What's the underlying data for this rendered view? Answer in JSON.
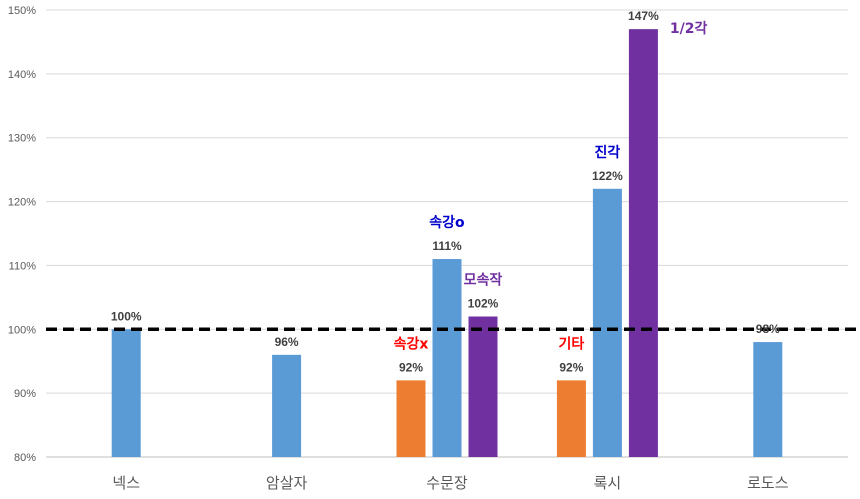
{
  "chart_data": {
    "type": "bar",
    "categories": [
      "넥스",
      "암살자",
      "수문장",
      "록시",
      "로도스"
    ],
    "ylim": [
      0.8,
      1.5
    ],
    "yticks": [
      "80%",
      "90%",
      "100%",
      "110%",
      "120%",
      "130%",
      "140%",
      "150%"
    ],
    "grid": true,
    "reference_line": {
      "value": 1.0,
      "style": "dashed",
      "color": "#000000"
    },
    "bars": [
      {
        "category": "넥스",
        "value": 1.0,
        "label": "100%",
        "color": "#5b9bd5",
        "annotation": ""
      },
      {
        "category": "암살자",
        "value": 0.96,
        "label": "96%",
        "color": "#5b9bd5",
        "annotation": ""
      },
      {
        "category": "수문장",
        "value": 0.92,
        "label": "92%",
        "color": "#ed7d31",
        "annotation": "속강x",
        "annotation_color": "#ff0000"
      },
      {
        "category": "수문장",
        "value": 1.11,
        "label": "111%",
        "color": "#5b9bd5",
        "annotation": "속강o",
        "annotation_color": "#0000cc"
      },
      {
        "category": "수문장",
        "value": 1.02,
        "label": "102%",
        "color": "#7030a0",
        "annotation": "모속작",
        "annotation_color": "#7030a0"
      },
      {
        "category": "록시",
        "value": 0.92,
        "label": "92%",
        "color": "#ed7d31",
        "annotation": "기타",
        "annotation_color": "#ff0000"
      },
      {
        "category": "록시",
        "value": 1.22,
        "label": "122%",
        "color": "#5b9bd5",
        "annotation": "진각",
        "annotation_color": "#0000cc"
      },
      {
        "category": "록시",
        "value": 1.47,
        "label": "147%",
        "color": "#7030a0",
        "annotation": "1/2각",
        "annotation_color": "#7030a0"
      },
      {
        "category": "로도스",
        "value": 0.98,
        "label": "98%",
        "color": "#5b9bd5",
        "annotation": ""
      }
    ]
  }
}
